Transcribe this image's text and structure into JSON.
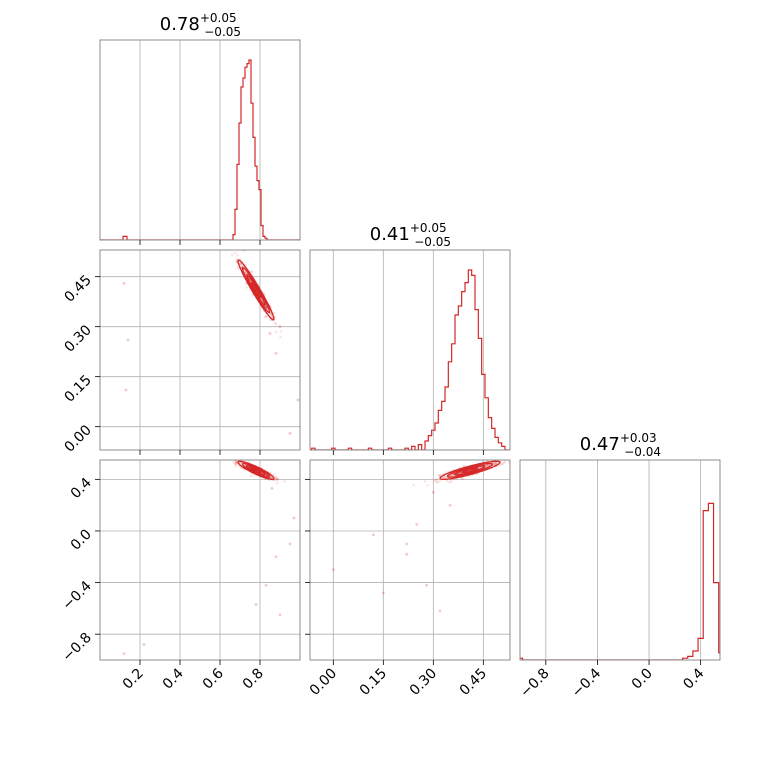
{
  "colors": {
    "series": "#d62728",
    "grid": "#b0b0b0",
    "frame": "#808080"
  },
  "chart_data": [
    {
      "type": "histogram",
      "panel": "diag-0",
      "title": {
        "value": "0.78",
        "upper": "+0.05",
        "lower": "−0.05"
      },
      "x_range": [
        0.0,
        1.0
      ],
      "bin_width": 0.01,
      "bins": [
        {
          "x": 0.12,
          "density": 0.02
        },
        {
          "x": 0.13,
          "density": 0.02
        },
        {
          "x": 0.67,
          "density": 0.03
        },
        {
          "x": 0.68,
          "density": 0.17
        },
        {
          "x": 0.69,
          "density": 0.42
        },
        {
          "x": 0.7,
          "density": 0.65
        },
        {
          "x": 0.71,
          "density": 0.85
        },
        {
          "x": 0.72,
          "density": 0.9
        },
        {
          "x": 0.73,
          "density": 0.96
        },
        {
          "x": 0.74,
          "density": 0.98
        },
        {
          "x": 0.75,
          "density": 1.0
        },
        {
          "x": 0.76,
          "density": 0.76
        },
        {
          "x": 0.77,
          "density": 0.57
        },
        {
          "x": 0.78,
          "density": 0.41
        },
        {
          "x": 0.79,
          "density": 0.33
        },
        {
          "x": 0.8,
          "density": 0.28
        },
        {
          "x": 0.81,
          "density": 0.08
        },
        {
          "x": 0.82,
          "density": 0.02
        },
        {
          "x": 0.83,
          "density": 0.01
        }
      ]
    },
    {
      "type": "histogram",
      "panel": "diag-1",
      "title": {
        "value": "0.41",
        "upper": "+0.05",
        "lower": "−0.05"
      },
      "x_range": [
        -0.07,
        0.53
      ],
      "bin_width": 0.01,
      "bins": [
        {
          "x": -0.06,
          "density": 0.01
        },
        {
          "x": 0.0,
          "density": 0.01
        },
        {
          "x": 0.05,
          "density": 0.01
        },
        {
          "x": 0.11,
          "density": 0.01
        },
        {
          "x": 0.17,
          "density": 0.01
        },
        {
          "x": 0.22,
          "density": 0.01
        },
        {
          "x": 0.24,
          "density": 0.02
        },
        {
          "x": 0.26,
          "density": 0.03
        },
        {
          "x": 0.28,
          "density": 0.05
        },
        {
          "x": 0.29,
          "density": 0.08
        },
        {
          "x": 0.3,
          "density": 0.11
        },
        {
          "x": 0.31,
          "density": 0.15
        },
        {
          "x": 0.32,
          "density": 0.22
        },
        {
          "x": 0.33,
          "density": 0.27
        },
        {
          "x": 0.34,
          "density": 0.35
        },
        {
          "x": 0.35,
          "density": 0.49
        },
        {
          "x": 0.36,
          "density": 0.59
        },
        {
          "x": 0.37,
          "density": 0.75
        },
        {
          "x": 0.38,
          "density": 0.8
        },
        {
          "x": 0.39,
          "density": 0.88
        },
        {
          "x": 0.4,
          "density": 0.93
        },
        {
          "x": 0.41,
          "density": 1.0
        },
        {
          "x": 0.42,
          "density": 0.97
        },
        {
          "x": 0.43,
          "density": 0.78
        },
        {
          "x": 0.44,
          "density": 0.62
        },
        {
          "x": 0.45,
          "density": 0.42
        },
        {
          "x": 0.46,
          "density": 0.29
        },
        {
          "x": 0.47,
          "density": 0.18
        },
        {
          "x": 0.48,
          "density": 0.12
        },
        {
          "x": 0.49,
          "density": 0.07
        },
        {
          "x": 0.5,
          "density": 0.04
        },
        {
          "x": 0.51,
          "density": 0.02
        }
      ]
    },
    {
      "type": "histogram",
      "panel": "diag-2",
      "title": {
        "value": "0.47",
        "upper": "+0.03",
        "lower": "−0.04"
      },
      "x_range": [
        -1.0,
        0.55
      ],
      "bin_width": 0.04,
      "bins": [
        {
          "x": -0.99,
          "density": 0.01
        },
        {
          "x": 0.27,
          "density": 0.01
        },
        {
          "x": 0.31,
          "density": 0.02
        },
        {
          "x": 0.35,
          "density": 0.05
        },
        {
          "x": 0.39,
          "density": 0.12
        },
        {
          "x": 0.43,
          "density": 0.83
        },
        {
          "x": 0.47,
          "density": 0.87
        },
        {
          "x": 0.51,
          "density": 0.43
        },
        {
          "x": 0.55,
          "density": 0.04
        }
      ]
    },
    {
      "type": "scatter",
      "panel": "off-1-0",
      "x_range": [
        0.0,
        1.0
      ],
      "y_range": [
        -0.07,
        0.53
      ],
      "ellipse": {
        "center": [
          0.78,
          0.41
        ],
        "sigma": [
          0.045,
          0.045
        ],
        "rho": -0.97
      },
      "points": [
        [
          0.12,
          0.43
        ],
        [
          0.14,
          0.26
        ],
        [
          0.13,
          0.11
        ],
        [
          0.85,
          0.28
        ],
        [
          0.88,
          0.22
        ],
        [
          0.99,
          0.08
        ],
        [
          0.95,
          -0.02
        ],
        [
          0.9,
          0.3
        ],
        [
          0.72,
          0.53
        ],
        [
          0.83,
          0.33
        ]
      ]
    },
    {
      "type": "scatter",
      "panel": "off-2-0",
      "x_range": [
        0.0,
        1.0
      ],
      "y_range": [
        -1.0,
        0.55
      ],
      "ellipse": {
        "center": [
          0.78,
          0.47
        ],
        "sigma": [
          0.045,
          0.035
        ],
        "rho": -0.9
      },
      "points": [
        [
          0.12,
          -0.95
        ],
        [
          0.22,
          -0.88
        ],
        [
          0.78,
          -0.57
        ],
        [
          0.83,
          -0.42
        ],
        [
          0.88,
          -0.2
        ],
        [
          0.95,
          -0.1
        ],
        [
          0.97,
          0.1
        ],
        [
          0.9,
          -0.65
        ],
        [
          0.68,
          0.52
        ],
        [
          0.86,
          0.33
        ]
      ]
    },
    {
      "type": "scatter",
      "panel": "off-2-1",
      "x_range": [
        -0.07,
        0.53
      ],
      "y_range": [
        -1.0,
        0.55
      ],
      "ellipse": {
        "center": [
          0.41,
          0.47
        ],
        "sigma": [
          0.045,
          0.035
        ],
        "rho": 0.88
      },
      "points": [
        [
          0.0,
          -0.3
        ],
        [
          0.12,
          -0.03
        ],
        [
          0.15,
          -0.48
        ],
        [
          0.22,
          -0.1
        ],
        [
          0.25,
          0.05
        ],
        [
          0.28,
          -0.42
        ],
        [
          0.32,
          -0.62
        ],
        [
          0.3,
          0.3
        ],
        [
          0.35,
          0.2
        ],
        [
          0.22,
          -0.18
        ]
      ]
    }
  ],
  "axes": {
    "x": [
      {
        "range": [
          0.0,
          1.0
        ],
        "ticks": [
          {
            "value": 0.2,
            "label": "0.2"
          },
          {
            "value": 0.4,
            "label": "0.4"
          },
          {
            "value": 0.6,
            "label": "0.6"
          },
          {
            "value": 0.8,
            "label": "0.8"
          }
        ]
      },
      {
        "range": [
          -0.07,
          0.53
        ],
        "ticks": [
          {
            "value": 0.0,
            "label": "0.00"
          },
          {
            "value": 0.15,
            "label": "0.15"
          },
          {
            "value": 0.3,
            "label": "0.30"
          },
          {
            "value": 0.45,
            "label": "0.45"
          }
        ]
      },
      {
        "range": [
          -1.0,
          0.55
        ],
        "ticks": [
          {
            "value": -0.8,
            "label": "−0.8"
          },
          {
            "value": -0.4,
            "label": "−0.4"
          },
          {
            "value": 0.0,
            "label": "0.0"
          },
          {
            "value": 0.4,
            "label": "0.4"
          }
        ]
      }
    ],
    "y": [
      null,
      {
        "range": [
          -0.07,
          0.53
        ],
        "ticks": [
          {
            "value": 0.0,
            "label": "0.00"
          },
          {
            "value": 0.15,
            "label": "0.15"
          },
          {
            "value": 0.3,
            "label": "0.30"
          },
          {
            "value": 0.45,
            "label": "0.45"
          }
        ]
      },
      {
        "range": [
          -1.0,
          0.55
        ],
        "ticks": [
          {
            "value": -0.8,
            "label": "−0.8"
          },
          {
            "value": -0.4,
            "label": "−0.4"
          },
          {
            "value": 0.0,
            "label": "0.0"
          },
          {
            "value": 0.4,
            "label": "0.4"
          }
        ]
      }
    ]
  }
}
